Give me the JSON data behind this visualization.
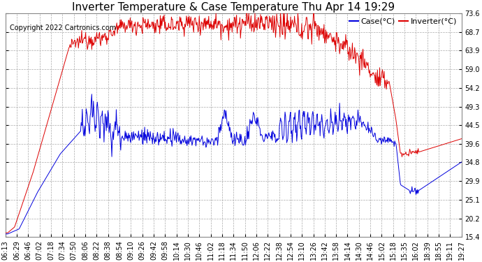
{
  "title": "Inverter Temperature & Case Temperature Thu Apr 14 19:29",
  "copyright": "Copyright 2022 Cartronics.com",
  "legend_case": "Case(°C)",
  "legend_inverter": "Inverter(°C)",
  "yticks": [
    15.4,
    20.2,
    25.1,
    29.9,
    34.8,
    39.6,
    44.5,
    49.3,
    54.2,
    59.0,
    63.9,
    68.7,
    73.6
  ],
  "ylim": [
    15.4,
    73.6
  ],
  "xtick_labels": [
    "06:13",
    "06:29",
    "06:46",
    "07:02",
    "07:18",
    "07:34",
    "07:50",
    "08:06",
    "08:22",
    "08:38",
    "08:54",
    "09:10",
    "09:26",
    "09:42",
    "09:58",
    "10:14",
    "10:30",
    "10:46",
    "11:02",
    "11:18",
    "11:34",
    "11:50",
    "12:06",
    "12:22",
    "12:38",
    "12:54",
    "13:10",
    "13:26",
    "13:42",
    "13:58",
    "14:14",
    "14:30",
    "14:46",
    "15:02",
    "15:18",
    "15:35",
    "16:02",
    "18:39",
    "18:55",
    "19:11",
    "19:27"
  ],
  "bg_color": "#ffffff",
  "plot_bg_color": "#ffffff",
  "grid_color": "#aaaaaa",
  "case_color": "#0000dd",
  "inverter_color": "#dd0000",
  "title_fontsize": 11,
  "tick_fontsize": 7,
  "legend_fontsize": 8,
  "copyright_fontsize": 7
}
